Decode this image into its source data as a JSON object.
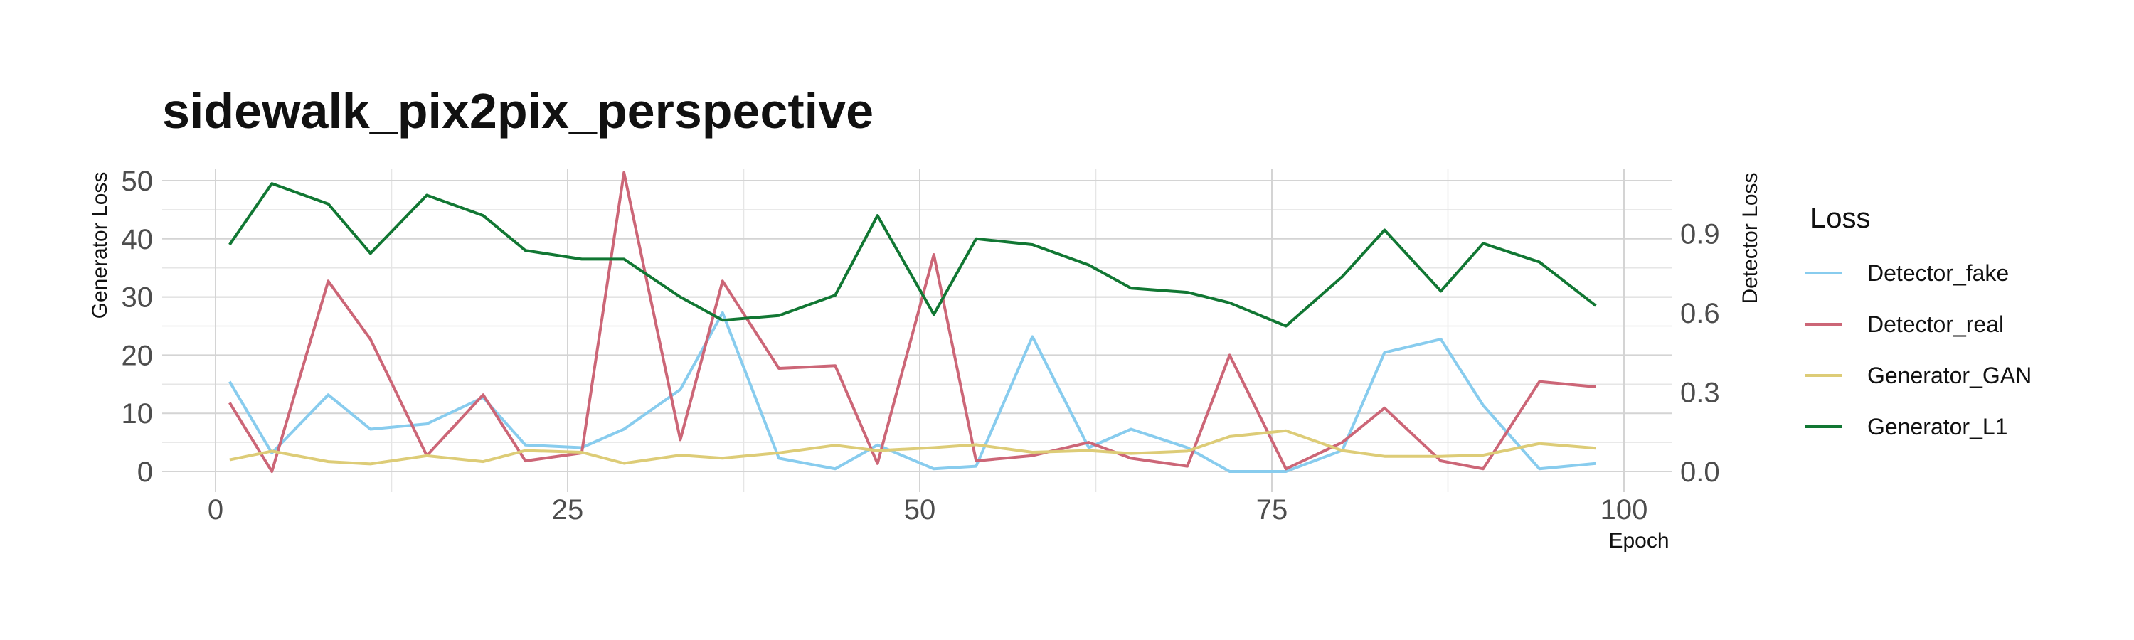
{
  "chart_data": {
    "type": "line",
    "title": "sidewalk_pix2pix_perspective",
    "xlabel": "Epoch",
    "ylabel_left": "Generator Loss",
    "ylabel_right": "Detector Loss",
    "xlim": [
      0,
      100
    ],
    "ylim_left": [
      0,
      50
    ],
    "ylim_right": [
      0,
      1.1
    ],
    "x_ticks": [
      "0",
      "25",
      "50",
      "75",
      "100"
    ],
    "y_left_ticks": [
      "0",
      "10",
      "20",
      "30",
      "40",
      "50"
    ],
    "y_right_ticks": [
      "0.0",
      "0.3",
      "0.6",
      "0.9"
    ],
    "grid": true,
    "legend_title": "Loss",
    "legend_position": "right",
    "x": [
      1,
      4,
      8,
      11,
      15,
      19,
      22,
      26,
      29,
      33,
      36,
      40,
      44,
      47,
      51,
      54,
      58,
      62,
      65,
      69,
      72,
      76,
      80,
      83,
      87,
      90,
      94,
      98
    ],
    "series": [
      {
        "name": "Detector_fake",
        "axis": "right",
        "color": "#88ccee",
        "values": [
          0.34,
          0.07,
          0.29,
          0.16,
          0.18,
          0.28,
          0.1,
          0.09,
          0.16,
          0.31,
          0.6,
          0.05,
          0.01,
          0.1,
          0.01,
          0.02,
          0.51,
          0.09,
          0.16,
          0.09,
          0.0,
          0.0,
          0.08,
          0.45,
          0.5,
          0.25,
          0.01,
          0.03
        ]
      },
      {
        "name": "Detector_real",
        "axis": "right",
        "color": "#cc6677",
        "values": [
          0.26,
          0.0,
          0.72,
          0.5,
          0.06,
          0.29,
          0.04,
          0.07,
          1.13,
          0.12,
          0.72,
          0.39,
          0.4,
          0.03,
          0.82,
          0.04,
          0.06,
          0.11,
          0.05,
          0.02,
          0.44,
          0.01,
          0.11,
          0.24,
          0.04,
          0.01,
          0.34,
          0.32
        ]
      },
      {
        "name": "Generator_GAN",
        "axis": "left",
        "color": "#ddcc77",
        "values": [
          2.0,
          3.5,
          1.7,
          1.3,
          2.7,
          1.7,
          3.6,
          3.3,
          1.4,
          2.8,
          2.3,
          3.2,
          4.5,
          3.6,
          4.1,
          4.6,
          3.3,
          3.6,
          3.1,
          3.5,
          6.0,
          7.0,
          3.6,
          2.6,
          2.6,
          2.8,
          4.8,
          4.0
        ]
      },
      {
        "name": "Generator_L1",
        "axis": "left",
        "color": "#117733",
        "values": [
          39.0,
          49.5,
          46.0,
          37.5,
          47.5,
          44.0,
          38.0,
          36.5,
          36.5,
          30.0,
          26.0,
          26.8,
          30.3,
          44.0,
          27.0,
          40.0,
          39.0,
          35.5,
          31.5,
          30.8,
          29.0,
          25.0,
          33.5,
          41.5,
          31.0,
          39.2,
          36.0,
          28.5
        ]
      }
    ]
  }
}
